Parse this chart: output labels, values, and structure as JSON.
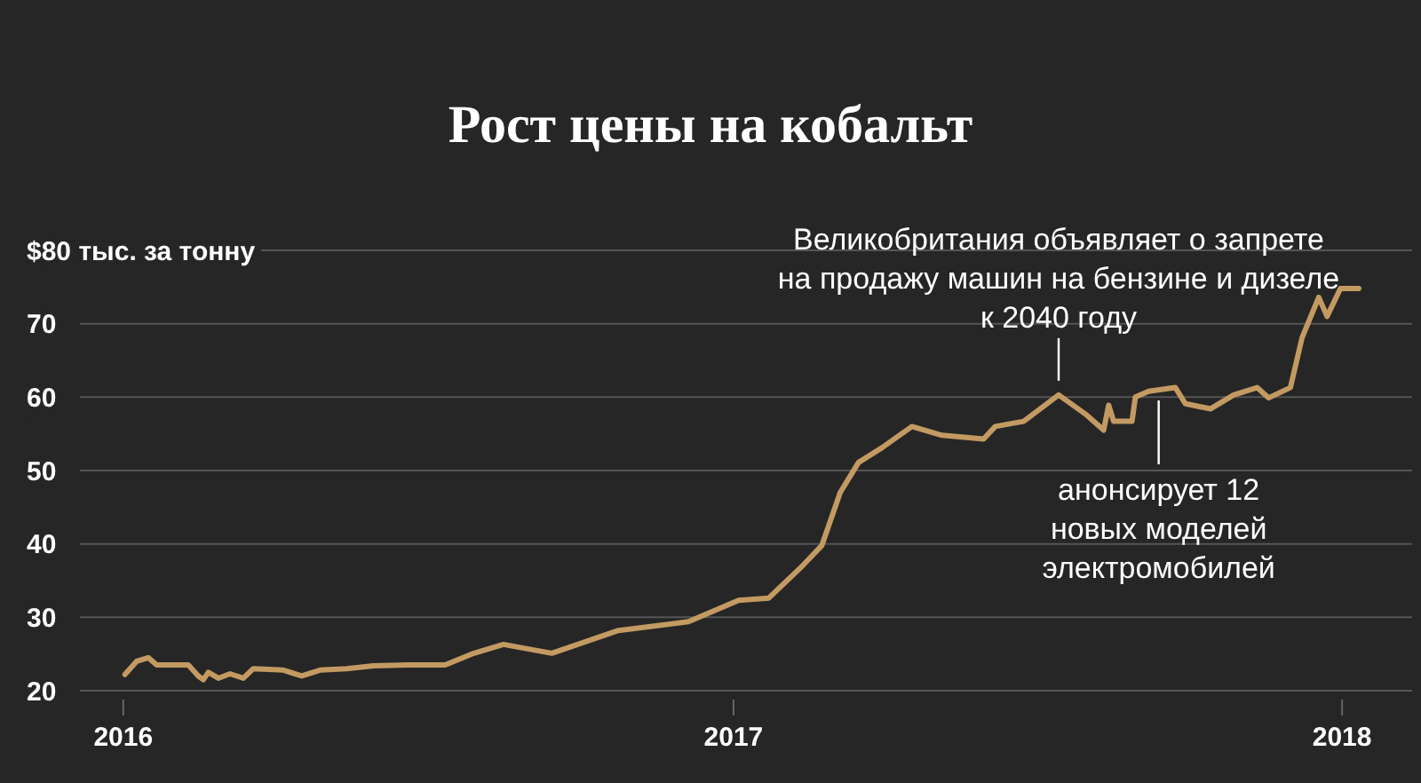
{
  "chart_data": {
    "type": "line",
    "title": "Рост цены на кобальт",
    "x": [
      "2016-01-02",
      "2016-01-09",
      "2016-01-16",
      "2016-01-21",
      "2016-02-09",
      "2016-02-15",
      "2016-02-18",
      "2016-02-21",
      "2016-02-27",
      "2016-03-05",
      "2016-03-13",
      "2016-03-19",
      "2016-04-06",
      "2016-04-17",
      "2016-04-28",
      "2016-05-14",
      "2016-05-30",
      "2016-06-20",
      "2016-07-12",
      "2016-07-28",
      "2016-08-16",
      "2016-09-14",
      "2016-10-24",
      "2016-12-05",
      "2017-01-04",
      "2017-01-22",
      "2017-02-10",
      "2017-02-23",
      "2017-03-06",
      "2017-03-17",
      "2017-03-31",
      "2017-04-18",
      "2017-05-06",
      "2017-05-31",
      "2017-06-07",
      "2017-06-24",
      "2017-07-15",
      "2017-07-31",
      "2017-08-11",
      "2017-08-14",
      "2017-08-17",
      "2017-08-28",
      "2017-08-30",
      "2017-09-07",
      "2017-09-23",
      "2017-09-29",
      "2017-10-14",
      "2017-10-28",
      "2017-11-11",
      "2017-11-18",
      "2017-12-01",
      "2017-12-08",
      "2017-12-18",
      "2017-12-23",
      "2017-12-31",
      "2018-01-11"
    ],
    "series": [
      {
        "color": "#c39a62",
        "values": [
          22.2,
          24,
          24.5,
          23.5,
          23.5,
          22,
          21.5,
          22.5,
          21.7,
          22.3,
          21.7,
          23,
          22.8,
          22,
          22.8,
          23,
          23.4,
          23.5,
          23.5,
          25,
          26.3,
          25.1,
          28.2,
          29.4,
          32.3,
          32.6,
          36.7,
          39.8,
          47,
          51.1,
          53.1,
          56,
          54.8,
          54.3,
          56,
          56.7,
          60.3,
          57.7,
          55.5,
          58.9,
          56.7,
          56.7,
          60,
          60.8,
          61.3,
          59.1,
          58.4,
          60.3,
          61.3,
          59.9,
          61.3,
          68.1,
          73.6,
          71,
          74.8,
          74.8
        ]
      }
    ],
    "xlim": [
      "2015-12-06",
      "2018-02-12"
    ],
    "xticks": [
      {
        "value": "2016-01-01",
        "label": "2016"
      },
      {
        "value": "2017-01-01",
        "label": "2017"
      },
      {
        "value": "2018-01-01",
        "label": "2018"
      }
    ],
    "ylim": [
      20,
      80
    ],
    "yticks": [
      20,
      30,
      40,
      50,
      60,
      70,
      {
        "value": 80,
        "label": "$80 тыс. за тонну"
      }
    ],
    "grid": "y",
    "annotations": [
      {
        "text": "Великобритания объявляет о запрете на продажу машин на бензине и дизеле к 2040 году",
        "x": "2017-07-15",
        "y": 60.3
      },
      {
        "text": "анонсирует 12 новых моделей электромобилей",
        "x": "2017-09-13",
        "y": 61
      }
    ]
  }
}
